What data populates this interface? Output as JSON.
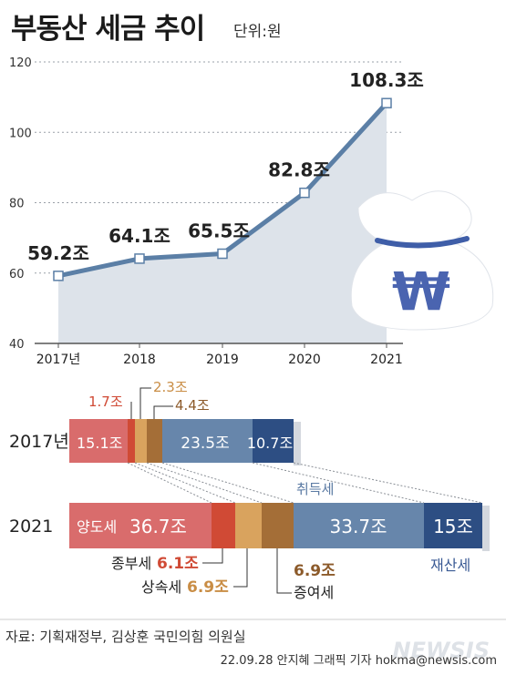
{
  "title": "부동산 세금 추이",
  "unit": "단위:원",
  "source": "자료: 기획재정부, 김상훈 국민의힘 의원실",
  "credit": "22.09.28 안지혜 그래픽 기자 hokma@newsis.com",
  "watermark": "NEWSIS",
  "colors": {
    "line": "#5b7fa6",
    "area": "#dde3ea",
    "yangdo": "#d96c6c",
    "jongbu": "#d04a35",
    "sangsok": "#d9a35e",
    "jeungyeo": "#a46e37",
    "chwideuk": "#6786ab",
    "jaesan": "#2d4e83"
  },
  "chart_data": [
    {
      "type": "line",
      "categories": [
        "2017년",
        "2018",
        "2019",
        "2020",
        "2021"
      ],
      "values": [
        59.2,
        64.1,
        65.5,
        82.8,
        108.3
      ],
      "value_labels": [
        "59.2조",
        "64.1조",
        "65.5조",
        "82.8조",
        "108.3조"
      ],
      "yticks": [
        "40",
        "60",
        "80",
        "100",
        "120"
      ],
      "ylim": [
        40,
        120
      ],
      "grid": true,
      "area_fill": true
    },
    {
      "type": "bar",
      "orientation": "horizontal-stacked",
      "categories": [
        "2017년",
        "2021"
      ],
      "series": [
        {
          "name": "양도세",
          "values": [
            15.1,
            36.7
          ]
        },
        {
          "name": "종부세",
          "values": [
            1.7,
            6.1
          ]
        },
        {
          "name": "상속세",
          "values": [
            2.3,
            6.9
          ]
        },
        {
          "name": "증여세",
          "values": [
            4.4,
            6.9
          ]
        },
        {
          "name": "취득세",
          "values": [
            23.5,
            33.7
          ]
        },
        {
          "name": "재산세",
          "values": [
            10.7,
            15
          ]
        }
      ],
      "labels_2017": [
        "15.1조",
        "1.7조",
        "2.3조",
        "4.4조",
        "23.5조",
        "10.7조"
      ],
      "labels_2021": [
        "36.7조",
        "6.1조",
        "6.9조",
        "6.9조",
        "33.7조",
        "15조"
      ]
    }
  ]
}
